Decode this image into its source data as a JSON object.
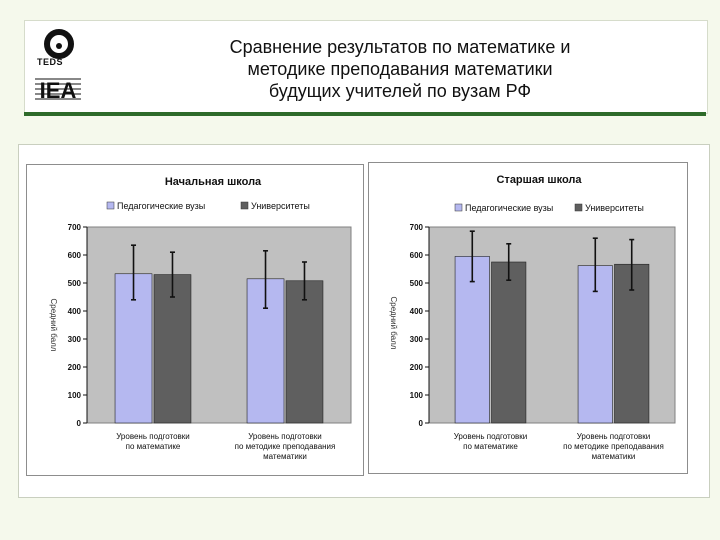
{
  "slide": {
    "title_lines": [
      "Сравнение результатов по математике и",
      "методике преподавания математики",
      "будущих учителей по вузам РФ"
    ],
    "logos": {
      "teds": "TEDS",
      "iea": "IEA"
    },
    "colors": {
      "accent": "#2e6b2a",
      "background": "#f5f9ec"
    }
  },
  "chart_data": [
    {
      "type": "bar",
      "title": "Начальная школа",
      "ylabel": "Средний балл",
      "ylim": [
        0,
        700
      ],
      "yticks": [
        0,
        100,
        200,
        300,
        400,
        500,
        600,
        700
      ],
      "grid": false,
      "legend_position": "top",
      "categories": [
        [
          "Уровень подготовки",
          "по математике"
        ],
        [
          "Уровень подготовки",
          "по методике преподавания",
          "математики"
        ]
      ],
      "series": [
        {
          "name": "Педагогические вузы",
          "color": "#b5b8f0",
          "values": [
            533,
            515
          ],
          "error_low": [
            440,
            410
          ],
          "error_high": [
            635,
            615
          ]
        },
        {
          "name": "Университеты",
          "color": "#5f5f5f",
          "values": [
            530,
            508
          ],
          "error_low": [
            450,
            440
          ],
          "error_high": [
            610,
            575
          ]
        }
      ]
    },
    {
      "type": "bar",
      "title": "Старшая школа",
      "ylabel": "Средний балл",
      "ylim": [
        0,
        700
      ],
      "yticks": [
        0,
        100,
        200,
        300,
        400,
        500,
        600,
        700
      ],
      "grid": false,
      "legend_position": "top",
      "categories": [
        [
          "Уровень подготовки",
          "по математике"
        ],
        [
          "Уровень подготовки",
          "по методике преподавания",
          "математики"
        ]
      ],
      "series": [
        {
          "name": "Педагогические вузы",
          "color": "#b5b8f0",
          "values": [
            595,
            562
          ],
          "error_low": [
            505,
            470
          ],
          "error_high": [
            685,
            660
          ]
        },
        {
          "name": "Университеты",
          "color": "#5f5f5f",
          "values": [
            575,
            567
          ],
          "error_low": [
            510,
            475
          ],
          "error_high": [
            640,
            655
          ]
        }
      ]
    }
  ]
}
